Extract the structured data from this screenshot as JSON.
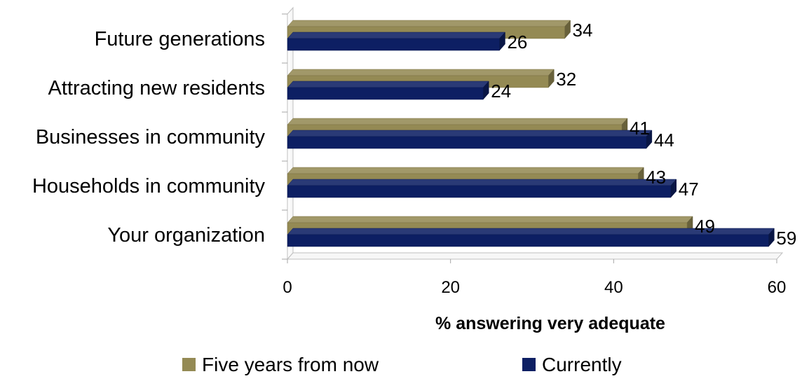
{
  "chart_data": {
    "type": "bar",
    "orientation": "horizontal",
    "style": "3d",
    "categories": [
      "Future generations",
      "Attracting new residents",
      "Businesses in community",
      "Households in community",
      "Your organization"
    ],
    "series": [
      {
        "name": "Five years from now",
        "color": "#948A54",
        "values": [
          34,
          32,
          41,
          43,
          49
        ]
      },
      {
        "name": "Currently",
        "color": "#0D1F63",
        "values": [
          26,
          24,
          44,
          47,
          59
        ]
      }
    ],
    "title": "",
    "xlabel": "% answering very adequate",
    "ylabel": "",
    "xlim": [
      0,
      60
    ],
    "xticks": [
      0,
      20,
      40,
      60
    ],
    "grid": false,
    "legend_position": "bottom",
    "data_labels": true
  }
}
